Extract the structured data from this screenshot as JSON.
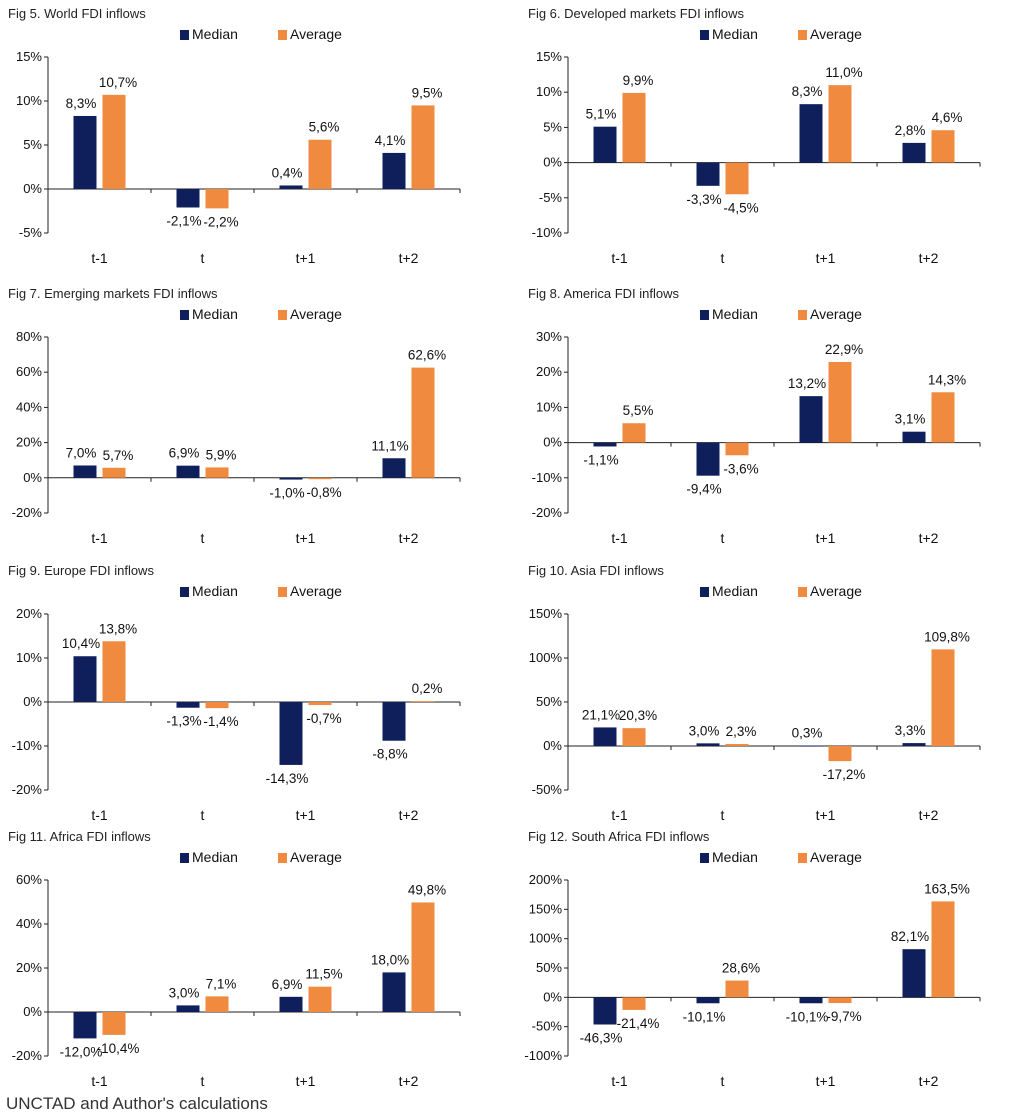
{
  "colors": {
    "median": "#0f1f5c",
    "average": "#ef8a3f"
  },
  "legend": {
    "median": "Median",
    "average": "Average"
  },
  "source": "UNCTAD and Author's calculations",
  "chart_data": [
    {
      "title": "Fig 5. World FDI inflows",
      "type": "bar",
      "categories": [
        "t-1",
        "t",
        "t+1",
        "t+2"
      ],
      "series": [
        {
          "name": "Median",
          "values": [
            8.3,
            -2.1,
            0.4,
            4.1
          ],
          "labels": [
            "8,3%",
            "-2,1%",
            "0,4%",
            "4,1%"
          ]
        },
        {
          "name": "Average",
          "values": [
            10.7,
            -2.2,
            5.6,
            9.5
          ],
          "labels": [
            "10,7%",
            "-2,2%",
            "5,6%",
            "9,5%"
          ]
        }
      ],
      "yticks": [
        -5,
        0,
        5,
        10,
        15
      ],
      "ytick_labels": [
        "-5%",
        "0%",
        "5%",
        "10%",
        "15%"
      ],
      "ylim": [
        -5,
        15
      ]
    },
    {
      "title": "Fig 6. Developed markets FDI inflows",
      "type": "bar",
      "categories": [
        "t-1",
        "t",
        "t+1",
        "t+2"
      ],
      "series": [
        {
          "name": "Median",
          "values": [
            5.1,
            -3.3,
            8.3,
            2.8
          ],
          "labels": [
            "5,1%",
            "-3,3%",
            "8,3%",
            "2,8%"
          ]
        },
        {
          "name": "Average",
          "values": [
            9.9,
            -4.5,
            11.0,
            4.6
          ],
          "labels": [
            "9,9%",
            "-4,5%",
            "11,0%",
            "4,6%"
          ]
        }
      ],
      "yticks": [
        -10,
        -5,
        0,
        5,
        10,
        15
      ],
      "ytick_labels": [
        "-10%",
        "-5%",
        "0%",
        "5%",
        "10%",
        "15%"
      ],
      "ylim": [
        -10,
        15
      ]
    },
    {
      "title": "Fig 7. Emerging markets FDI inflows",
      "type": "bar",
      "categories": [
        "t-1",
        "t",
        "t+1",
        "t+2"
      ],
      "series": [
        {
          "name": "Median",
          "values": [
            7.0,
            6.9,
            -1.0,
            11.1
          ],
          "labels": [
            "7,0%",
            "6,9%",
            "-1,0%",
            "11,1%"
          ]
        },
        {
          "name": "Average",
          "values": [
            5.7,
            5.9,
            -0.8,
            62.6
          ],
          "labels": [
            "5,7%",
            "5,9%",
            "-0,8%",
            "62,6%"
          ]
        }
      ],
      "yticks": [
        -20,
        0,
        20,
        40,
        60,
        80
      ],
      "ytick_labels": [
        "-20%",
        "0%",
        "20%",
        "40%",
        "60%",
        "80%"
      ],
      "ylim": [
        -20,
        80
      ]
    },
    {
      "title": "Fig 8. America FDI inflows",
      "type": "bar",
      "categories": [
        "t-1",
        "t",
        "t+1",
        "t+2"
      ],
      "series": [
        {
          "name": "Median",
          "values": [
            -1.1,
            -9.4,
            13.2,
            3.1
          ],
          "labels": [
            "-1,1%",
            "-9,4%",
            "13,2%",
            "3,1%"
          ]
        },
        {
          "name": "Average",
          "values": [
            5.5,
            -3.6,
            22.9,
            14.3
          ],
          "labels": [
            "5,5%",
            "-3,6%",
            "22,9%",
            "14,3%"
          ]
        }
      ],
      "yticks": [
        -20,
        -10,
        0,
        10,
        20,
        30
      ],
      "ytick_labels": [
        "-20%",
        "-10%",
        "0%",
        "10%",
        "20%",
        "30%"
      ],
      "ylim": [
        -20,
        30
      ]
    },
    {
      "title": "Fig 9. Europe FDI inflows",
      "type": "bar",
      "categories": [
        "t-1",
        "t",
        "t+1",
        "t+2"
      ],
      "series": [
        {
          "name": "Median",
          "values": [
            10.4,
            -1.3,
            -14.3,
            -8.8
          ],
          "labels": [
            "10,4%",
            "-1,3%",
            "-14,3%",
            "-8,8%"
          ]
        },
        {
          "name": "Average",
          "values": [
            13.8,
            -1.4,
            -0.7,
            0.2
          ],
          "labels": [
            "13,8%",
            "-1,4%",
            "-0,7%",
            "0,2%"
          ]
        }
      ],
      "yticks": [
        -20,
        -10,
        0,
        10,
        20
      ],
      "ytick_labels": [
        "-20%",
        "-10%",
        "0%",
        "10%",
        "20%"
      ],
      "ylim": [
        -20,
        20
      ]
    },
    {
      "title": "Fig 10. Asia FDI inflows",
      "type": "bar",
      "categories": [
        "t-1",
        "t",
        "t+1",
        "t+2"
      ],
      "series": [
        {
          "name": "Median",
          "values": [
            21.1,
            3.0,
            0.3,
            3.3
          ],
          "labels": [
            "21,1%",
            "3,0%",
            "0,3%",
            "3,3%"
          ]
        },
        {
          "name": "Average",
          "values": [
            20.3,
            2.3,
            -17.2,
            109.8
          ],
          "labels": [
            "20,3%",
            "2,3%",
            "-17,2%",
            "109,8%"
          ]
        }
      ],
      "yticks": [
        -50,
        0,
        50,
        100,
        150
      ],
      "ytick_labels": [
        "-50%",
        "0%",
        "50%",
        "100%",
        "150%"
      ],
      "ylim": [
        -50,
        150
      ]
    },
    {
      "title": "Fig 11. Africa FDI inflows",
      "type": "bar",
      "categories": [
        "t-1",
        "t",
        "t+1",
        "t+2"
      ],
      "series": [
        {
          "name": "Median",
          "values": [
            -12.0,
            3.0,
            6.9,
            18.0
          ],
          "labels": [
            "-12,0%",
            "3,0%",
            "6,9%",
            "18,0%"
          ]
        },
        {
          "name": "Average",
          "values": [
            -10.4,
            7.1,
            11.5,
            49.8
          ],
          "labels": [
            "-10,4%",
            "7,1%",
            "11,5%",
            "49,8%"
          ]
        }
      ],
      "yticks": [
        -20,
        0,
        20,
        40,
        60
      ],
      "ytick_labels": [
        "-20%",
        "0%",
        "20%",
        "40%",
        "60%"
      ],
      "ylim": [
        -20,
        60
      ]
    },
    {
      "title": "Fig 12. South Africa FDI inflows",
      "type": "bar",
      "categories": [
        "t-1",
        "t",
        "t+1",
        "t+2"
      ],
      "series": [
        {
          "name": "Median",
          "values": [
            -46.3,
            -10.1,
            -10.1,
            82.1
          ],
          "labels": [
            "-46,3%",
            "-10,1%",
            "-10,1%",
            "82,1%"
          ]
        },
        {
          "name": "Average",
          "values": [
            -21.4,
            28.6,
            -9.7,
            163.5
          ],
          "labels": [
            "-21,4%",
            "28,6%",
            "-9,7%",
            "163,5%"
          ]
        }
      ],
      "yticks": [
        -100,
        -50,
        0,
        50,
        100,
        150,
        200
      ],
      "ytick_labels": [
        "-100%",
        "-50%",
        "0%",
        "50%",
        "100%",
        "150%",
        "200%"
      ],
      "ylim": [
        -100,
        200
      ]
    }
  ]
}
